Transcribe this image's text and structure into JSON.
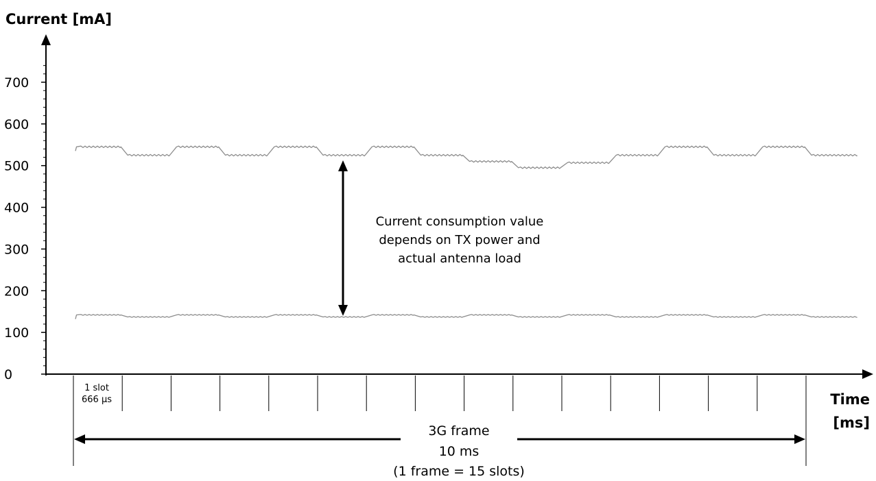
{
  "chart_data": {
    "type": "line",
    "ylabel": "Current [mA]",
    "xlabel_line1": "Time",
    "xlabel_line2": "[ms]",
    "ylim": [
      0,
      700
    ],
    "y_ticks": [
      "0",
      "100",
      "200",
      "300",
      "400",
      "500",
      "600",
      "700"
    ],
    "slots": 15,
    "slot_label_line1": "1 slot",
    "slot_label_line2": "666 µs",
    "series": [
      {
        "values": [
          545,
          525,
          545,
          525,
          545,
          525,
          545,
          525,
          510,
          495,
          507,
          525,
          545,
          525,
          545,
          525
        ]
      },
      {
        "values": [
          142,
          137,
          142,
          137,
          142,
          137,
          142,
          137,
          142,
          137,
          142,
          137,
          142,
          137,
          142,
          137
        ]
      }
    ],
    "annotation": [
      "Current consumption value",
      "depends on TX power and",
      "actual antenna load"
    ],
    "frame_label": [
      "3G frame",
      "10 ms",
      "(1 frame = 15 slots)"
    ],
    "grid": false,
    "colors": {
      "trace": "#8c8c8c",
      "axis": "#000000"
    }
  }
}
